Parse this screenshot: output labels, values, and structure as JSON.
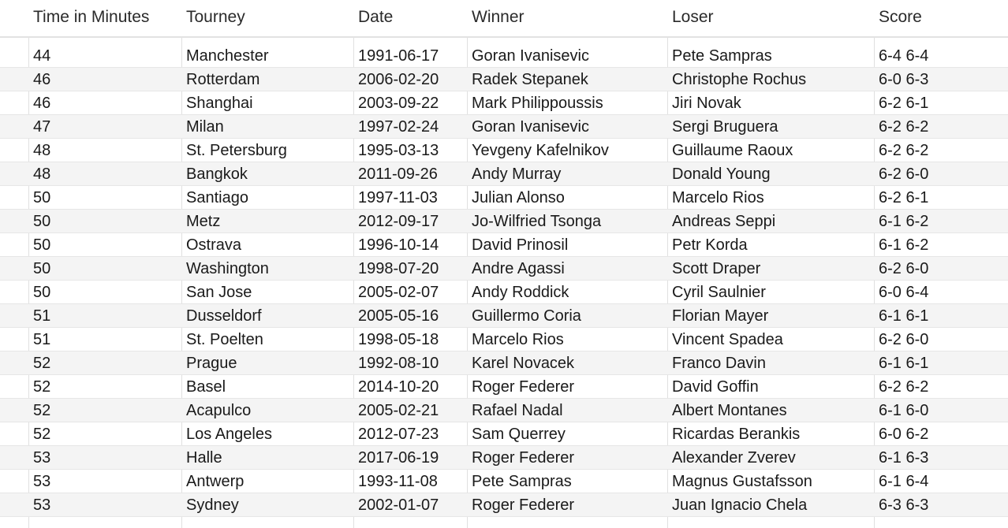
{
  "columns": [
    "Time in Minutes",
    "Tourney",
    "Date",
    "Winner",
    "Loser",
    "Score"
  ],
  "rows": [
    [
      "44",
      "Manchester",
      "1991-06-17",
      "Goran Ivanisevic",
      "Pete Sampras",
      "6-4 6-4"
    ],
    [
      "46",
      "Rotterdam",
      "2006-02-20",
      "Radek Stepanek",
      "Christophe Rochus",
      "6-0 6-3"
    ],
    [
      "46",
      "Shanghai",
      "2003-09-22",
      "Mark Philippoussis",
      "Jiri Novak",
      "6-2 6-1"
    ],
    [
      "47",
      "Milan",
      "1997-02-24",
      "Goran Ivanisevic",
      "Sergi Bruguera",
      "6-2 6-2"
    ],
    [
      "48",
      "St. Petersburg",
      "1995-03-13",
      "Yevgeny Kafelnikov",
      "Guillaume Raoux",
      "6-2 6-2"
    ],
    [
      "48",
      "Bangkok",
      "2011-09-26",
      "Andy Murray",
      "Donald Young",
      "6-2 6-0"
    ],
    [
      "50",
      "Santiago",
      "1997-11-03",
      "Julian Alonso",
      "Marcelo Rios",
      "6-2 6-1"
    ],
    [
      "50",
      "Metz",
      "2012-09-17",
      "Jo-Wilfried Tsonga",
      "Andreas Seppi",
      "6-1 6-2"
    ],
    [
      "50",
      "Ostrava",
      "1996-10-14",
      "David Prinosil",
      "Petr Korda",
      "6-1 6-2"
    ],
    [
      "50",
      "Washington",
      "1998-07-20",
      "Andre Agassi",
      "Scott Draper",
      "6-2 6-0"
    ],
    [
      "50",
      "San Jose",
      "2005-02-07",
      "Andy Roddick",
      "Cyril Saulnier",
      "6-0 6-4"
    ],
    [
      "51",
      "Dusseldorf",
      "2005-05-16",
      "Guillermo Coria",
      "Florian Mayer",
      "6-1 6-1"
    ],
    [
      "51",
      "St. Poelten",
      "1998-05-18",
      "Marcelo Rios",
      "Vincent Spadea",
      "6-2 6-0"
    ],
    [
      "52",
      "Prague",
      "1992-08-10",
      "Karel Novacek",
      "Franco Davin",
      "6-1 6-1"
    ],
    [
      "52",
      "Basel",
      "2014-10-20",
      "Roger Federer",
      "David Goffin",
      "6-2 6-2"
    ],
    [
      "52",
      "Acapulco",
      "2005-02-21",
      "Rafael Nadal",
      "Albert Montanes",
      "6-1 6-0"
    ],
    [
      "52",
      "Los Angeles",
      "2012-07-23",
      "Sam Querrey",
      "Ricardas Berankis",
      "6-0 6-2"
    ],
    [
      "53",
      "Halle",
      "2017-06-19",
      "Roger Federer",
      "Alexander Zverev",
      "6-1 6-3"
    ],
    [
      "53",
      "Antwerp",
      "1993-11-08",
      "Pete Sampras",
      "Magnus Gustafsson",
      "6-1 6-4"
    ],
    [
      "53",
      "Sydney",
      "2002-01-07",
      "Roger Federer",
      "Juan Ignacio Chela",
      "6-3 6-3"
    ]
  ]
}
